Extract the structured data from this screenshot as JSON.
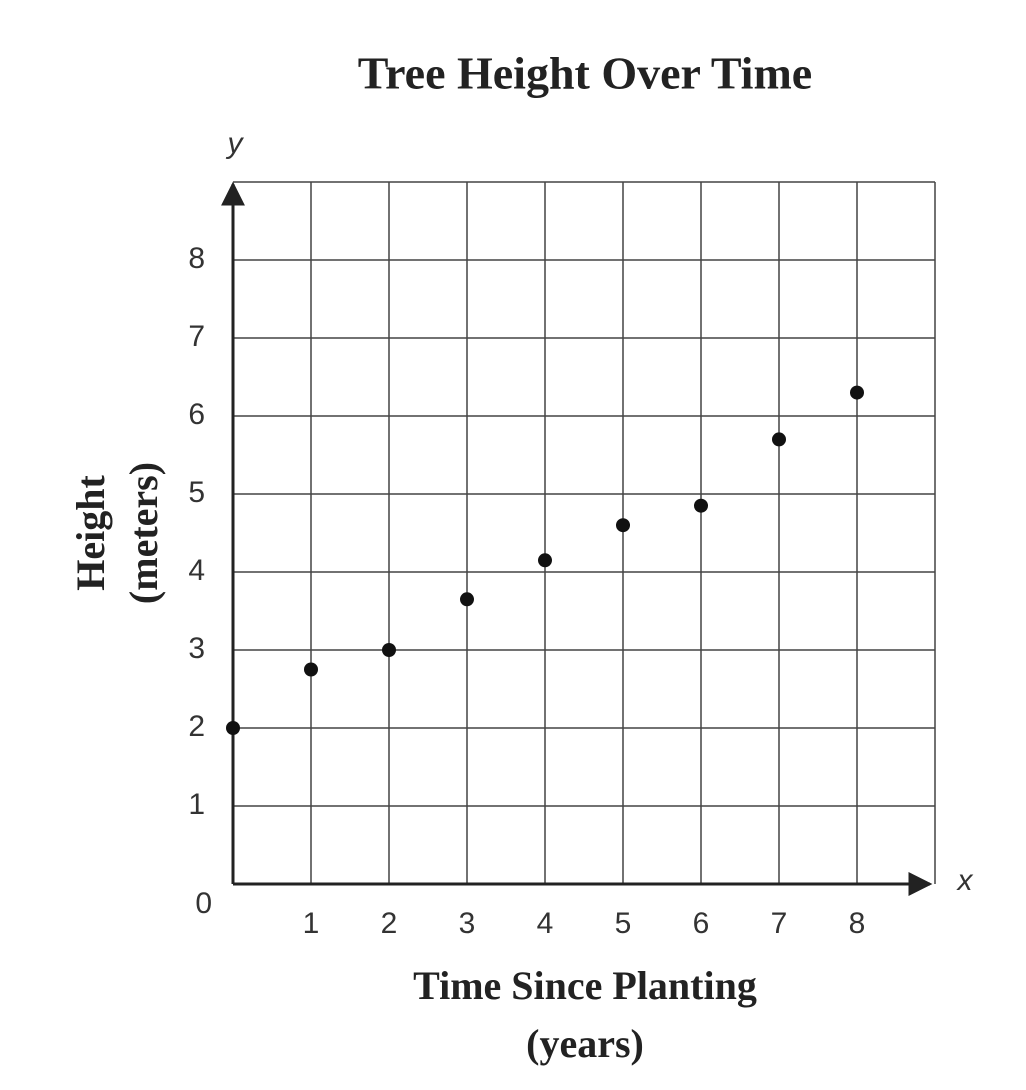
{
  "chart_data": {
    "type": "scatter",
    "title": "Tree Height Over Time",
    "xlabel": [
      "Time Since Planting",
      "(years)"
    ],
    "ylabel": [
      "Height",
      "(meters)"
    ],
    "x_axis_letter": "x",
    "y_axis_letter": "y",
    "x": [
      0,
      1,
      2,
      3,
      4,
      5,
      6,
      7,
      8
    ],
    "values": [
      2,
      2.75,
      3,
      3.65,
      4.15,
      4.6,
      4.85,
      5.7,
      6.3
    ],
    "color": "#111111",
    "xlim": [
      0,
      9
    ],
    "ylim": [
      0,
      9
    ],
    "xticks": [
      1,
      2,
      3,
      4,
      5,
      6,
      7,
      8
    ],
    "yticks": [
      0,
      1,
      2,
      3,
      4,
      5,
      6,
      7,
      8
    ],
    "grid": true
  }
}
